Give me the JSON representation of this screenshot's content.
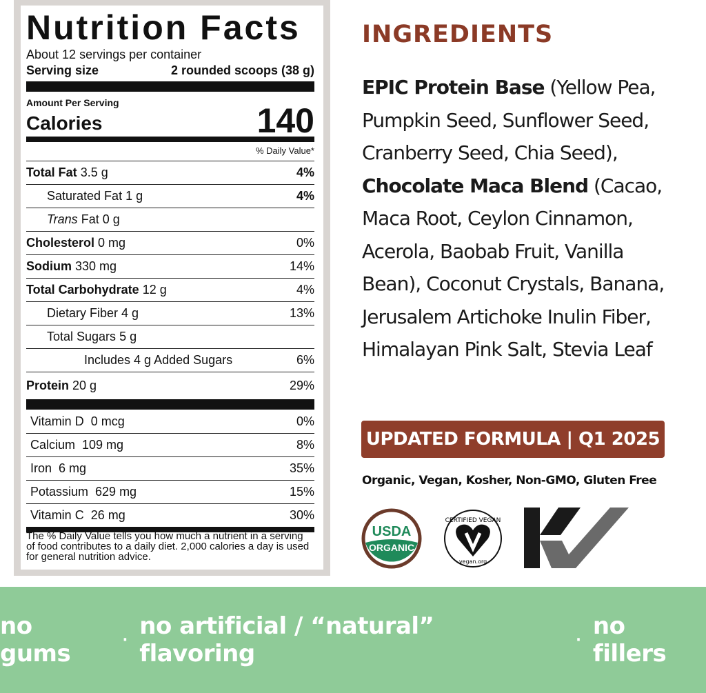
{
  "nutrition": {
    "title": "Nutrition Facts",
    "servings": "About 12 servings per container",
    "serving_size_label": "Serving size",
    "serving_size_value": "2 rounded scoops (38 g)",
    "amount_per_serving": "Amount Per Serving",
    "calories_label": "Calories",
    "calories_value": "140",
    "daily_value_header": "% Daily Value*",
    "rows": [
      {
        "name": "Total Fat",
        "amount": "3.5 g",
        "dv": "4%"
      },
      {
        "name": "Saturated Fat",
        "amount": "1 g",
        "dv": "4%"
      },
      {
        "name": "Trans",
        "name_suffix": "Fat 0 g",
        "dv": ""
      },
      {
        "name": "Cholesterol",
        "amount": "0 mg",
        "dv": "0%"
      },
      {
        "name": "Sodium",
        "amount": "330 mg",
        "dv": "14%"
      },
      {
        "name": "Total Carbohydrate",
        "amount": "12 g",
        "dv": "4%"
      },
      {
        "name": "Dietary Fiber",
        "amount": "4 g",
        "dv": "13%"
      },
      {
        "name": "Total Sugars",
        "amount": "5 g",
        "dv": ""
      },
      {
        "name": "Includes 4 g Added Sugars",
        "dv": "6%"
      },
      {
        "name": "Protein",
        "amount": "20 g",
        "dv": "29%"
      }
    ],
    "vitamins": [
      {
        "name": "Vitamin D  0 mcg",
        "dv": "0%"
      },
      {
        "name": "Calcium  109 mg",
        "dv": "8%"
      },
      {
        "name": "Iron  6 mg",
        "dv": "35%"
      },
      {
        "name": "Potassium  629 mg",
        "dv": "15%"
      },
      {
        "name": "Vitamin C  26 mg",
        "dv": "30%"
      }
    ],
    "footnote": "The % Daily Value tells you how much a nutrient in a serving of food contributes to a daily diet. 2,000 calories a day is used for general nutrition advice."
  },
  "ingredients": {
    "heading": "INGREDIENTS",
    "blend1_name": "EPIC Protein Base",
    "blend1_items": " (Yellow Pea, Pumpkin Seed, Sunflower Seed, Cranberry Seed, Chia Seed),",
    "blend2_name": "Chocolate Maca Blend",
    "blend2_items": " (Cacao, Maca Root, Ceylon Cinnamon, Acerola, Baobab Fruit, Vanilla Bean), Coconut Crystals, Banana, Jerusalem Artichoke Inulin Fiber, Himalayan Pink Salt, Stevia Leaf"
  },
  "banner": "UPDATED FORMULA | Q1 2025",
  "claims": "Organic, Vegan, Kosher, Non-GMO, Gluten Free",
  "logos": {
    "usda": [
      "USDA",
      "ORGANIC"
    ],
    "vegan": [
      "CERTIFIED VEGAN",
      "vegan.org"
    ],
    "kosher": "KV"
  },
  "colors": {
    "accent": "#8f3e2b",
    "band": "#8fcb98",
    "usda_green": "#1f8a5a",
    "usda_brown": "#6b3a2a"
  },
  "footer_band": [
    "no gums",
    "no artificial / “natural” flavoring",
    "no fillers"
  ]
}
